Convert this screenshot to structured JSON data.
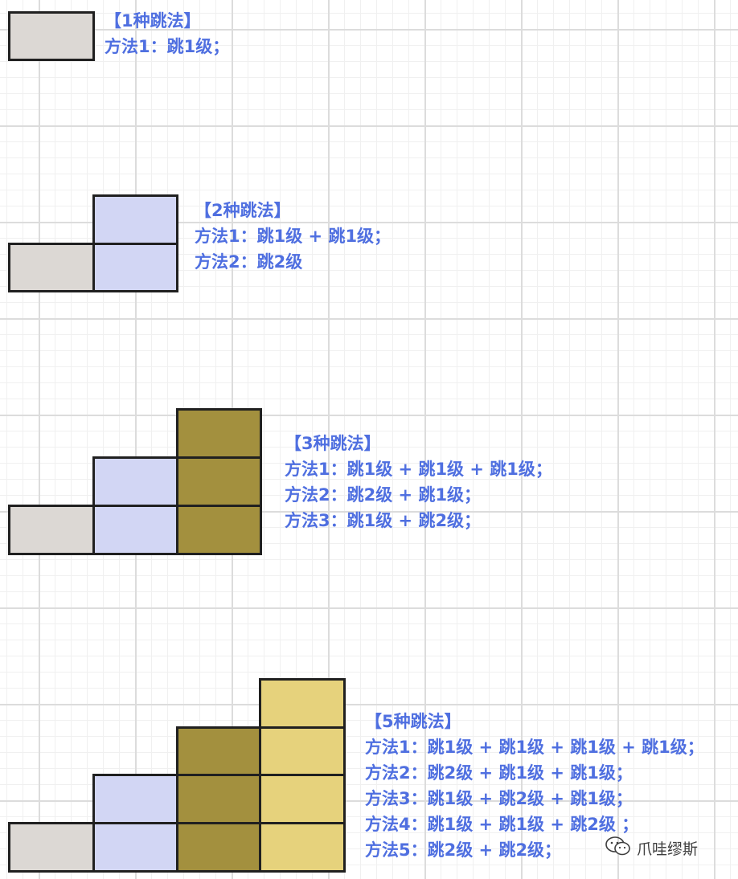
{
  "colors": {
    "step1": "#dcd8d4",
    "step2": "#d2d6f4",
    "step3": "#a3903e",
    "step4": "#e6d27c",
    "text": "#4f6fe0",
    "border": "#202020"
  },
  "sections": [
    {
      "heading": "【1种跳法】",
      "methods": [
        "方法1：跳1级；"
      ]
    },
    {
      "heading": "【2种跳法】",
      "methods": [
        "方法1：跳1级 + 跳1级；",
        "方法2：跳2级"
      ]
    },
    {
      "heading": "【3种跳法】",
      "methods": [
        "方法1：跳1级 + 跳1级 + 跳1级；",
        "方法2：跳2级 + 跳1级；",
        "方法3：跳1级 + 跳2级；"
      ]
    },
    {
      "heading": "【5种跳法】",
      "methods": [
        "方法1：跳1级 + 跳1级 + 跳1级 + 跳1级；",
        "方法2：跳2级 + 跳1级 + 跳1级；",
        "方法3：跳1级 + 跳2级 + 跳1级；",
        "方法4：跳1级 + 跳1级 + 跳2级 ；",
        "方法5：跳2级 + 跳2级；"
      ]
    }
  ],
  "stairs": [
    {
      "steps": [
        1
      ]
    },
    {
      "steps": [
        1,
        2
      ]
    },
    {
      "steps": [
        1,
        2,
        3
      ]
    },
    {
      "steps": [
        1,
        2,
        3,
        4
      ]
    }
  ],
  "watermark": {
    "icon": "wechat-icon",
    "text": "爪哇缪斯"
  }
}
